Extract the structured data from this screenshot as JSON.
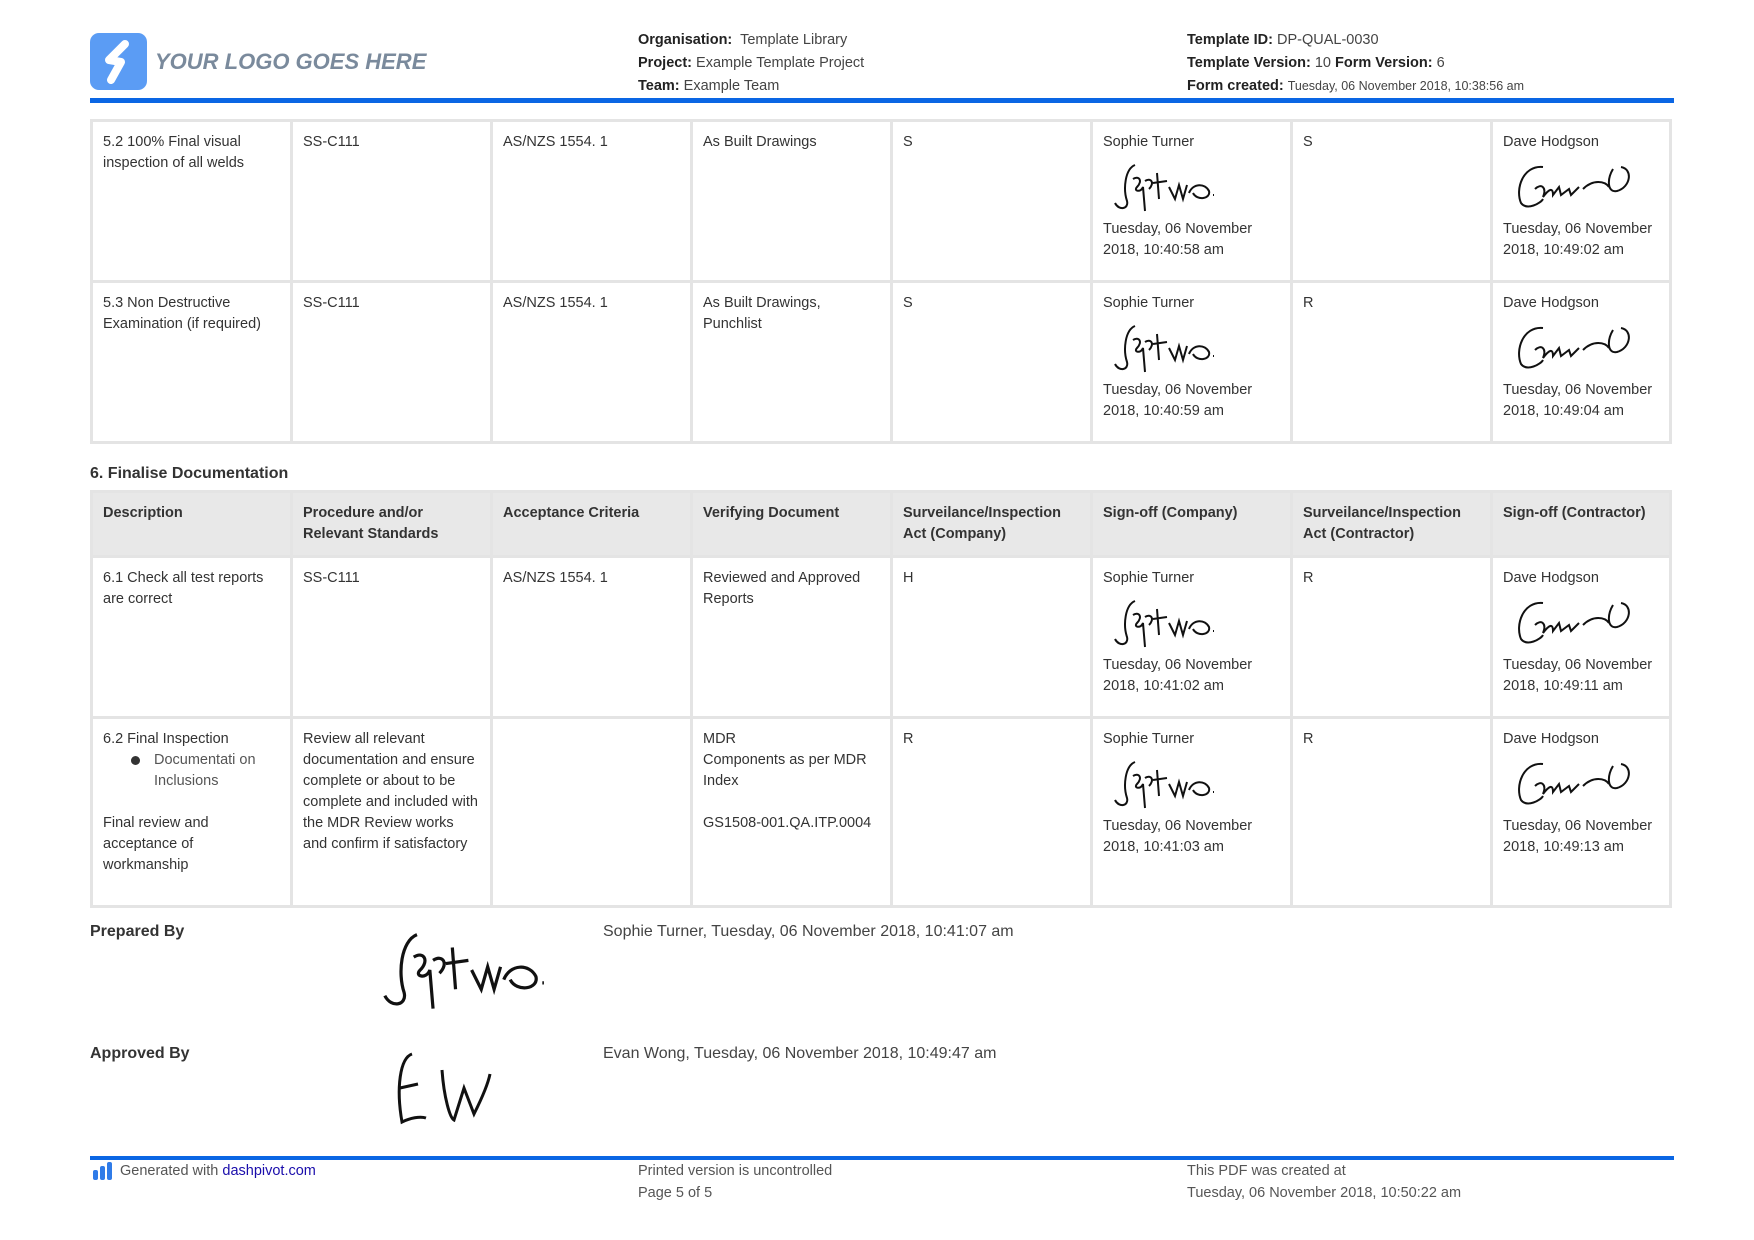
{
  "header": {
    "logo_text": "YOUR LOGO GOES HERE",
    "organisation_label": "Organisation:",
    "organisation": "Template Library",
    "project_label": "Project:",
    "project": "Example Template Project",
    "team_label": "Team:",
    "team": "Example Team",
    "template_id_label": "Template ID:",
    "template_id": "DP-QUAL-0030",
    "template_version_label": "Template Version:",
    "template_version": "10",
    "form_version_label": "Form Version:",
    "form_version": "6",
    "form_created_label": "Form created:",
    "form_created": "Tuesday, 06 November 2018, 10:38:56 am"
  },
  "table5": {
    "rows": [
      {
        "desc": "5.2 100% Final visual inspection of all welds",
        "proc": "SS-C111",
        "accept": "AS/NZS 1554. 1",
        "verify": "As Built Drawings",
        "surv_company": "S",
        "company_name": "Sophie Turner",
        "company_date": "Tuesday, 06 November 2018, 10:40:58 am",
        "surv_contractor": "S",
        "contractor_name": "Dave Hodgson",
        "contractor_date": "Tuesday, 06 November 2018, 10:49:02 am"
      },
      {
        "desc": "5.3 Non Destructive Examination (if required)",
        "proc": "SS-C111",
        "accept": "AS/NZS 1554. 1",
        "verify": "As Built Drawings, Punchlist",
        "surv_company": "S",
        "company_name": "Sophie Turner",
        "company_date": "Tuesday, 06 November 2018, 10:40:59 am",
        "surv_contractor": "R",
        "contractor_name": "Dave Hodgson",
        "contractor_date": "Tuesday, 06 November 2018, 10:49:04 am"
      }
    ]
  },
  "section6": {
    "title": "6. Finalise Documentation",
    "headers": [
      "Description",
      "Procedure and/or Relevant Standards",
      "Acceptance Criteria",
      "Verifying Document",
      "Surveilance/Inspection Act (Company)",
      "Sign-off (Company)",
      "Surveilance/Inspection Act (Contractor)",
      "Sign-off (Contractor)"
    ],
    "rows": [
      {
        "desc": "6.1 Check all test reports are correct",
        "proc": "SS-C111",
        "accept": "AS/NZS 1554. 1",
        "verify": "Reviewed and Approved Reports",
        "surv_company": "H",
        "company_name": "Sophie Turner",
        "company_date": "Tuesday, 06 November 2018, 10:41:02 am",
        "surv_contractor": "R",
        "contractor_name": "Dave Hodgson",
        "contractor_date": "Tuesday, 06 November 2018, 10:49:11 am"
      },
      {
        "desc": "6.2 Final Inspection",
        "bullet": "Documentati on Inclusions",
        "desc2": "Final review and acceptance of workmanship",
        "proc": "Review all relevant documentation and ensure complete or about to be complete and included with the MDR Review works and confirm if satisfactory",
        "accept": "",
        "verify": "MDR",
        "verify2": "Components as per MDR Index",
        "verify3": "GS1508-001.QA.ITP.0004",
        "surv_company": "R",
        "company_name": "Sophie Turner",
        "company_date": "Tuesday, 06 November 2018, 10:41:03 am",
        "surv_contractor": "R",
        "contractor_name": "Dave Hodgson",
        "contractor_date": "Tuesday, 06 November 2018, 10:49:13 am"
      }
    ]
  },
  "signoff": {
    "prepared_label": "Prepared By",
    "prepared_text": "Sophie Turner, Tuesday, 06 November 2018, 10:41:07 am",
    "approved_label": "Approved By",
    "approved_text": "Evan Wong, Tuesday, 06 November 2018, 10:49:47 am"
  },
  "footer": {
    "generated": "Generated with",
    "link": "dashpivot.com",
    "uncontrolled": "Printed version is uncontrolled",
    "page": "Page 5 of 5",
    "created_label": "This PDF was created at",
    "created": "Tuesday, 06 November 2018, 10:50:22 am"
  },
  "colors": {
    "accent": "#0a66e4",
    "logo": "#5b9cf4"
  }
}
